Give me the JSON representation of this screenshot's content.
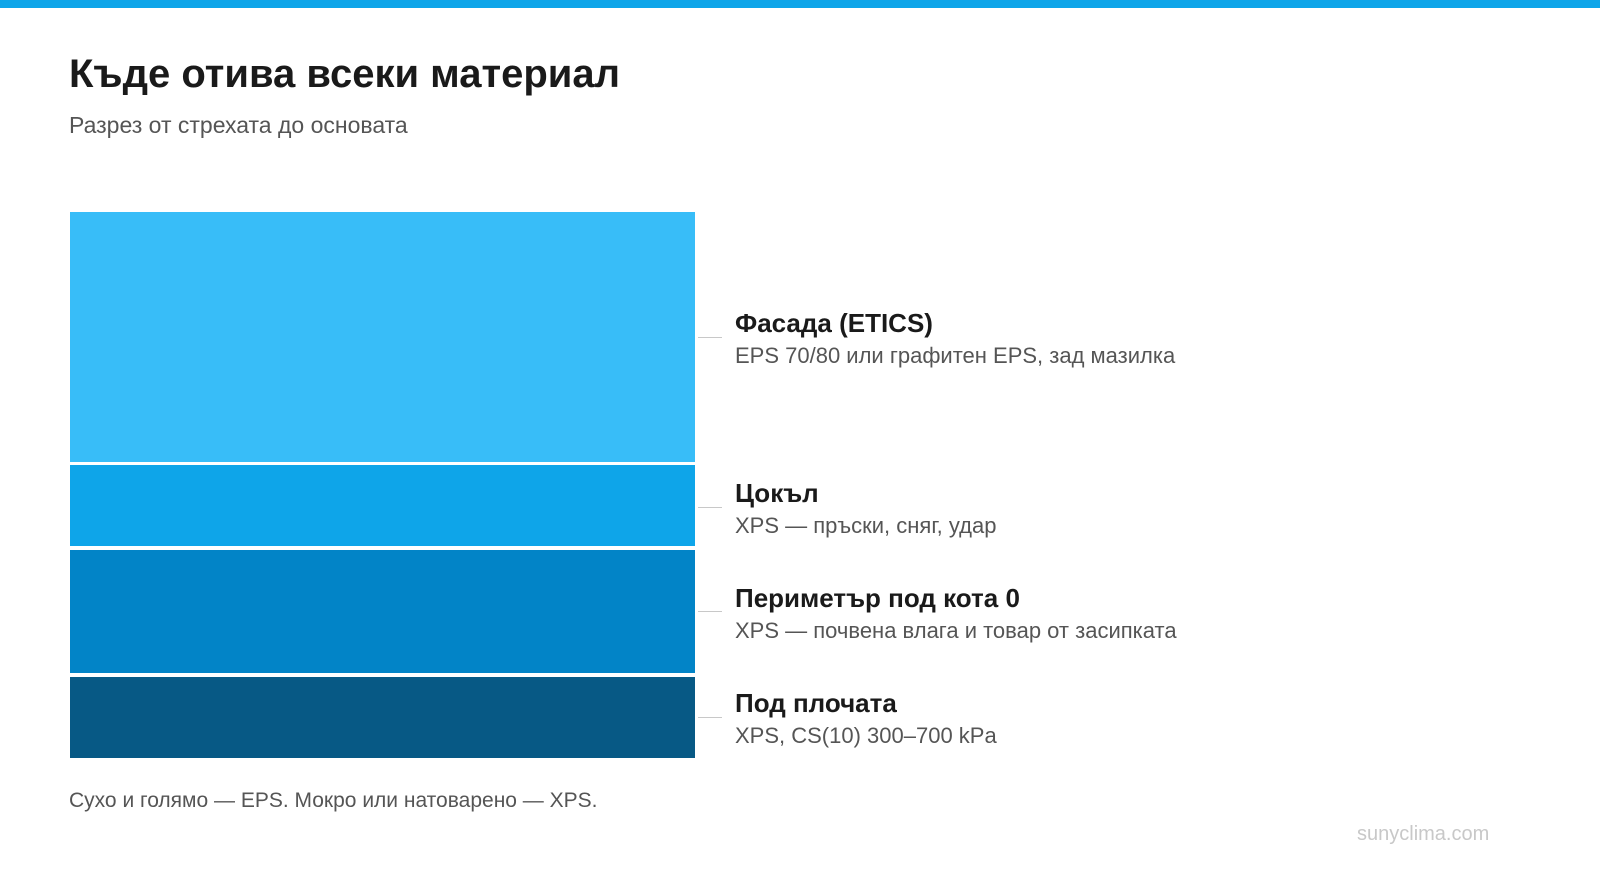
{
  "header": {
    "title": "Къде отива всеки материал",
    "subtitle": "Разрез от стрехата до основата"
  },
  "layers": [
    {
      "title": "Фасада (ETICS)",
      "description": "EPS 70/80 или графитен EPS, зад мазилка",
      "color": "#38bdf8"
    },
    {
      "title": "Цокъл",
      "description": "XPS — пръски, сняг, удар",
      "color": "#0ea5e9"
    },
    {
      "title": "Периметър под кота 0",
      "description": "XPS — почвена влага и товар от засипката",
      "color": "#0284c7"
    },
    {
      "title": "Под плочата",
      "description": "XPS, CS(10) 300–700 kPa",
      "color": "#075985"
    }
  ],
  "footnote": "Сухо и голямо — EPS. Мокро или натоварено — XPS.",
  "watermark": "sunyclima.com",
  "colors": {
    "accent_bar": "#0ea5e9"
  }
}
